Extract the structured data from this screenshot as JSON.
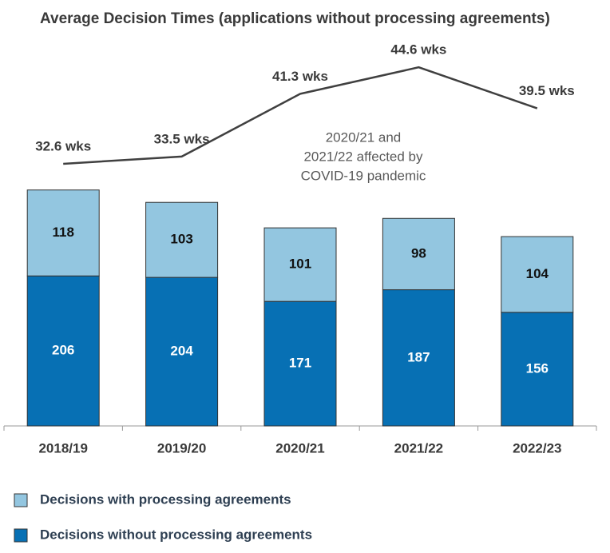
{
  "chart_data": {
    "type": "bar",
    "stacked": true,
    "title": "Average Decision Times (applications without processing agreements)",
    "categories": [
      "2018/19",
      "2019/20",
      "2020/21",
      "2021/22",
      "2022/23"
    ],
    "series": [
      {
        "name": "Decisions without processing agreements",
        "color": "#0770b4",
        "values": [
          206,
          204,
          171,
          187,
          156
        ]
      },
      {
        "name": "Decisions with processing agreements",
        "color": "#93c6e0",
        "values": [
          118,
          103,
          101,
          98,
          104
        ]
      },
      {
        "type": "line",
        "axis": "y2",
        "color": "#404040",
        "values": [
          32.6,
          33.5,
          41.3,
          44.6,
          39.5
        ],
        "value_labels": [
          "32.6 wks",
          "33.5 wks",
          "41.3 wks",
          "44.6 wks",
          "39.5 wks"
        ]
      }
    ],
    "annotation": [
      "2020/21 and",
      "2021/22 affected by",
      "COVID-19 pandemic"
    ],
    "ylim": [
      0,
      530
    ],
    "y2lim": [
      0,
      48
    ]
  }
}
